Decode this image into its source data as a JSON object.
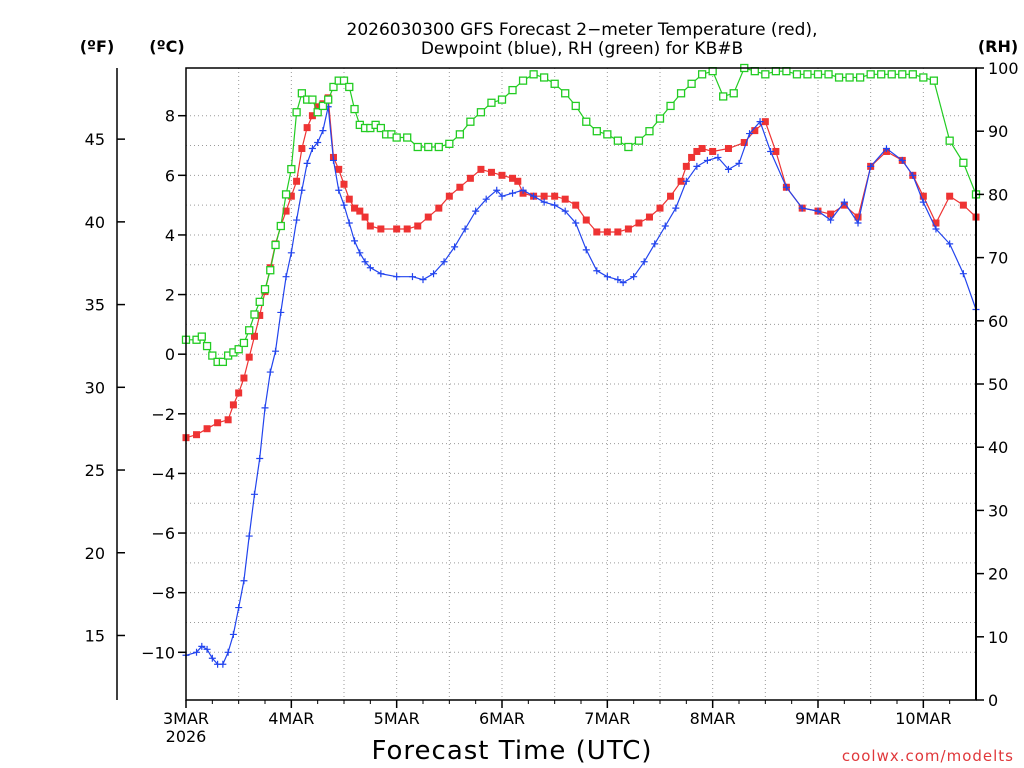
{
  "chart_data": {
    "type": "line",
    "title_line1": "2026030300 GFS Forecast 2−meter Temperature (red),",
    "title_line2": "Dewpoint (blue), RH (green) for KB#B",
    "xlabel": "Forecast Time (UTC)",
    "credit": "coolwx.com/modelts",
    "unit_labels": {
      "fahrenheit": "(ºF)",
      "celsius": "(ºC)",
      "rh": "(RH)"
    },
    "x_range_days": [
      0,
      7.5
    ],
    "x_ticks": [
      {
        "day": 0,
        "label": "3MAR",
        "sub": "2026"
      },
      {
        "day": 1,
        "label": "4MAR",
        "sub": ""
      },
      {
        "day": 2,
        "label": "5MAR",
        "sub": ""
      },
      {
        "day": 3,
        "label": "6MAR",
        "sub": ""
      },
      {
        "day": 4,
        "label": "7MAR",
        "sub": ""
      },
      {
        "day": 5,
        "label": "8MAR",
        "sub": ""
      },
      {
        "day": 6,
        "label": "9MAR",
        "sub": ""
      },
      {
        "day": 7,
        "label": "10MAR",
        "sub": ""
      }
    ],
    "ylim_celsius": [
      -11.6,
      9.6
    ],
    "ylim_fahrenheit": [
      11.1,
      49.3
    ],
    "ylim_rh": [
      0,
      100
    ],
    "celsius_ticks": [
      {
        "v": 8,
        "label": "8"
      },
      {
        "v": 6,
        "label": "6"
      },
      {
        "v": 4,
        "label": "4"
      },
      {
        "v": 2,
        "label": "2"
      },
      {
        "v": 0,
        "label": "0"
      },
      {
        "v": -2,
        "label": "−2"
      },
      {
        "v": -4,
        "label": "−4"
      },
      {
        "v": -6,
        "label": "−6"
      },
      {
        "v": -8,
        "label": "−8"
      },
      {
        "v": -10,
        "label": "−10"
      }
    ],
    "fahrenheit_ticks": [
      {
        "v": 45,
        "label": "45"
      },
      {
        "v": 40,
        "label": "40"
      },
      {
        "v": 35,
        "label": "35"
      },
      {
        "v": 30,
        "label": "30"
      },
      {
        "v": 25,
        "label": "25"
      },
      {
        "v": 20,
        "label": "20"
      },
      {
        "v": 15,
        "label": "15"
      }
    ],
    "rh_ticks": [
      {
        "v": 100,
        "label": "100"
      },
      {
        "v": 90,
        "label": "90"
      },
      {
        "v": 80,
        "label": "80"
      },
      {
        "v": 70,
        "label": "70"
      },
      {
        "v": 60,
        "label": "60"
      },
      {
        "v": 50,
        "label": "50"
      },
      {
        "v": 40,
        "label": "40"
      },
      {
        "v": 30,
        "label": "30"
      },
      {
        "v": 20,
        "label": "20"
      },
      {
        "v": 10,
        "label": "10"
      },
      {
        "v": 0,
        "label": "0"
      }
    ],
    "grid": true,
    "series": [
      {
        "name": "Temperature",
        "axis": "celsius",
        "color": "#ee3333",
        "marker": "filled-square",
        "points": [
          [
            0.0,
            -2.8
          ],
          [
            0.1,
            -2.7
          ],
          [
            0.2,
            -2.5
          ],
          [
            0.3,
            -2.3
          ],
          [
            0.4,
            -2.2
          ],
          [
            0.45,
            -1.7
          ],
          [
            0.5,
            -1.3
          ],
          [
            0.55,
            -0.8
          ],
          [
            0.6,
            -0.1
          ],
          [
            0.65,
            0.6
          ],
          [
            0.7,
            1.3
          ],
          [
            0.75,
            2.1
          ],
          [
            0.8,
            2.9
          ],
          [
            0.85,
            3.7
          ],
          [
            0.9,
            4.3
          ],
          [
            0.95,
            4.8
          ],
          [
            1.0,
            5.3
          ],
          [
            1.05,
            5.8
          ],
          [
            1.1,
            6.9
          ],
          [
            1.15,
            7.6
          ],
          [
            1.2,
            8.0
          ],
          [
            1.25,
            8.3
          ],
          [
            1.3,
            8.4
          ],
          [
            1.35,
            8.6
          ],
          [
            1.4,
            6.6
          ],
          [
            1.45,
            6.2
          ],
          [
            1.5,
            5.7
          ],
          [
            1.55,
            5.2
          ],
          [
            1.6,
            4.9
          ],
          [
            1.65,
            4.8
          ],
          [
            1.7,
            4.6
          ],
          [
            1.75,
            4.3
          ],
          [
            1.85,
            4.2
          ],
          [
            2.0,
            4.2
          ],
          [
            2.1,
            4.2
          ],
          [
            2.2,
            4.3
          ],
          [
            2.3,
            4.6
          ],
          [
            2.4,
            4.9
          ],
          [
            2.5,
            5.3
          ],
          [
            2.6,
            5.6
          ],
          [
            2.7,
            5.9
          ],
          [
            2.8,
            6.2
          ],
          [
            2.9,
            6.1
          ],
          [
            3.0,
            6.0
          ],
          [
            3.1,
            5.9
          ],
          [
            3.15,
            5.8
          ],
          [
            3.2,
            5.4
          ],
          [
            3.3,
            5.3
          ],
          [
            3.4,
            5.3
          ],
          [
            3.5,
            5.3
          ],
          [
            3.6,
            5.2
          ],
          [
            3.7,
            5.0
          ],
          [
            3.8,
            4.5
          ],
          [
            3.9,
            4.1
          ],
          [
            4.0,
            4.1
          ],
          [
            4.1,
            4.1
          ],
          [
            4.2,
            4.2
          ],
          [
            4.3,
            4.4
          ],
          [
            4.4,
            4.6
          ],
          [
            4.5,
            4.9
          ],
          [
            4.6,
            5.3
          ],
          [
            4.7,
            5.8
          ],
          [
            4.75,
            6.3
          ],
          [
            4.8,
            6.6
          ],
          [
            4.85,
            6.8
          ],
          [
            4.9,
            6.9
          ],
          [
            5.0,
            6.8
          ],
          [
            5.15,
            6.9
          ],
          [
            5.3,
            7.1
          ],
          [
            5.4,
            7.5
          ],
          [
            5.5,
            7.8
          ],
          [
            5.6,
            6.8
          ],
          [
            5.7,
            5.6
          ],
          [
            5.85,
            4.9
          ],
          [
            6.0,
            4.8
          ],
          [
            6.12,
            4.7
          ],
          [
            6.25,
            5.0
          ],
          [
            6.38,
            4.6
          ],
          [
            6.5,
            6.3
          ],
          [
            6.65,
            6.8
          ],
          [
            6.8,
            6.5
          ],
          [
            6.9,
            6.0
          ],
          [
            7.0,
            5.3
          ],
          [
            7.12,
            4.4
          ],
          [
            7.25,
            5.3
          ],
          [
            7.38,
            5.0
          ],
          [
            7.5,
            4.6
          ]
        ]
      },
      {
        "name": "Dewpoint",
        "axis": "celsius",
        "color": "#2244ee",
        "marker": "plus",
        "points": [
          [
            0.0,
            -10.1
          ],
          [
            0.1,
            -10.0
          ],
          [
            0.15,
            -9.8
          ],
          [
            0.2,
            -9.9
          ],
          [
            0.25,
            -10.2
          ],
          [
            0.3,
            -10.4
          ],
          [
            0.35,
            -10.4
          ],
          [
            0.4,
            -10.0
          ],
          [
            0.45,
            -9.4
          ],
          [
            0.5,
            -8.5
          ],
          [
            0.55,
            -7.6
          ],
          [
            0.6,
            -6.1
          ],
          [
            0.65,
            -4.7
          ],
          [
            0.7,
            -3.5
          ],
          [
            0.75,
            -1.8
          ],
          [
            0.8,
            -0.6
          ],
          [
            0.85,
            0.1
          ],
          [
            0.9,
            1.4
          ],
          [
            0.95,
            2.6
          ],
          [
            1.0,
            3.4
          ],
          [
            1.05,
            4.5
          ],
          [
            1.1,
            5.5
          ],
          [
            1.15,
            6.4
          ],
          [
            1.2,
            6.9
          ],
          [
            1.25,
            7.1
          ],
          [
            1.3,
            7.5
          ],
          [
            1.35,
            8.3
          ],
          [
            1.4,
            6.5
          ],
          [
            1.45,
            5.5
          ],
          [
            1.5,
            5.0
          ],
          [
            1.55,
            4.4
          ],
          [
            1.6,
            3.8
          ],
          [
            1.65,
            3.4
          ],
          [
            1.7,
            3.1
          ],
          [
            1.75,
            2.9
          ],
          [
            1.85,
            2.7
          ],
          [
            2.0,
            2.6
          ],
          [
            2.15,
            2.6
          ],
          [
            2.25,
            2.5
          ],
          [
            2.35,
            2.7
          ],
          [
            2.45,
            3.1
          ],
          [
            2.55,
            3.6
          ],
          [
            2.65,
            4.2
          ],
          [
            2.75,
            4.8
          ],
          [
            2.85,
            5.2
          ],
          [
            2.95,
            5.5
          ],
          [
            3.0,
            5.3
          ],
          [
            3.1,
            5.4
          ],
          [
            3.2,
            5.5
          ],
          [
            3.3,
            5.3
          ],
          [
            3.4,
            5.1
          ],
          [
            3.5,
            5.0
          ],
          [
            3.6,
            4.8
          ],
          [
            3.7,
            4.4
          ],
          [
            3.8,
            3.5
          ],
          [
            3.9,
            2.8
          ],
          [
            4.0,
            2.6
          ],
          [
            4.1,
            2.5
          ],
          [
            4.15,
            2.4
          ],
          [
            4.25,
            2.6
          ],
          [
            4.35,
            3.1
          ],
          [
            4.45,
            3.7
          ],
          [
            4.55,
            4.3
          ],
          [
            4.65,
            4.9
          ],
          [
            4.75,
            5.8
          ],
          [
            4.85,
            6.3
          ],
          [
            4.95,
            6.5
          ],
          [
            5.05,
            6.6
          ],
          [
            5.15,
            6.2
          ],
          [
            5.25,
            6.4
          ],
          [
            5.35,
            7.4
          ],
          [
            5.45,
            7.8
          ],
          [
            5.55,
            6.8
          ],
          [
            5.7,
            5.6
          ],
          [
            5.85,
            4.9
          ],
          [
            6.0,
            4.8
          ],
          [
            6.12,
            4.5
          ],
          [
            6.25,
            5.1
          ],
          [
            6.38,
            4.4
          ],
          [
            6.5,
            6.3
          ],
          [
            6.65,
            6.9
          ],
          [
            6.8,
            6.5
          ],
          [
            6.9,
            6.0
          ],
          [
            7.0,
            5.1
          ],
          [
            7.12,
            4.2
          ],
          [
            7.25,
            3.7
          ],
          [
            7.38,
            2.7
          ],
          [
            7.5,
            1.5
          ]
        ]
      },
      {
        "name": "RH",
        "axis": "rh",
        "color": "#22cc22",
        "marker": "open-square",
        "points": [
          [
            0.0,
            57
          ],
          [
            0.1,
            57
          ],
          [
            0.15,
            57.5
          ],
          [
            0.2,
            56
          ],
          [
            0.25,
            54.5
          ],
          [
            0.3,
            53.5
          ],
          [
            0.35,
            53.5
          ],
          [
            0.4,
            54.5
          ],
          [
            0.45,
            55
          ],
          [
            0.5,
            55.5
          ],
          [
            0.55,
            56.5
          ],
          [
            0.6,
            58.5
          ],
          [
            0.65,
            61
          ],
          [
            0.7,
            63
          ],
          [
            0.75,
            65
          ],
          [
            0.8,
            68
          ],
          [
            0.85,
            72
          ],
          [
            0.9,
            75
          ],
          [
            0.95,
            80
          ],
          [
            1.0,
            84
          ],
          [
            1.05,
            93
          ],
          [
            1.1,
            96
          ],
          [
            1.15,
            95
          ],
          [
            1.2,
            95
          ],
          [
            1.25,
            93
          ],
          [
            1.3,
            94
          ],
          [
            1.35,
            95
          ],
          [
            1.4,
            97
          ],
          [
            1.45,
            98
          ],
          [
            1.5,
            98
          ],
          [
            1.55,
            97
          ],
          [
            1.6,
            93.5
          ],
          [
            1.65,
            91
          ],
          [
            1.7,
            90.5
          ],
          [
            1.75,
            90.5
          ],
          [
            1.8,
            91
          ],
          [
            1.85,
            90.5
          ],
          [
            1.9,
            89.5
          ],
          [
            1.95,
            89.5
          ],
          [
            2.0,
            89
          ],
          [
            2.1,
            89
          ],
          [
            2.2,
            87.5
          ],
          [
            2.3,
            87.5
          ],
          [
            2.4,
            87.5
          ],
          [
            2.5,
            88
          ],
          [
            2.6,
            89.5
          ],
          [
            2.7,
            91.5
          ],
          [
            2.8,
            93
          ],
          [
            2.9,
            94.5
          ],
          [
            3.0,
            95
          ],
          [
            3.1,
            96.5
          ],
          [
            3.2,
            98
          ],
          [
            3.3,
            99
          ],
          [
            3.4,
            98.5
          ],
          [
            3.5,
            97.5
          ],
          [
            3.6,
            96
          ],
          [
            3.7,
            94
          ],
          [
            3.8,
            91.5
          ],
          [
            3.9,
            90
          ],
          [
            4.0,
            89.5
          ],
          [
            4.1,
            88.5
          ],
          [
            4.2,
            87.5
          ],
          [
            4.3,
            88.5
          ],
          [
            4.4,
            90
          ],
          [
            4.5,
            92
          ],
          [
            4.6,
            94
          ],
          [
            4.7,
            96
          ],
          [
            4.8,
            97.5
          ],
          [
            4.9,
            99
          ],
          [
            5.0,
            99.5
          ],
          [
            5.1,
            95.5
          ],
          [
            5.2,
            96
          ],
          [
            5.3,
            100
          ],
          [
            5.4,
            99.5
          ],
          [
            5.5,
            99
          ],
          [
            5.6,
            99.5
          ],
          [
            5.7,
            99.5
          ],
          [
            5.8,
            99
          ],
          [
            5.9,
            99
          ],
          [
            6.0,
            99
          ],
          [
            6.1,
            99
          ],
          [
            6.2,
            98.5
          ],
          [
            6.3,
            98.5
          ],
          [
            6.4,
            98.5
          ],
          [
            6.5,
            99
          ],
          [
            6.6,
            99
          ],
          [
            6.7,
            99
          ],
          [
            6.8,
            99
          ],
          [
            6.9,
            99
          ],
          [
            7.0,
            98.5
          ],
          [
            7.1,
            98
          ],
          [
            7.25,
            88.5
          ],
          [
            7.38,
            85
          ],
          [
            7.5,
            80
          ]
        ]
      }
    ]
  }
}
